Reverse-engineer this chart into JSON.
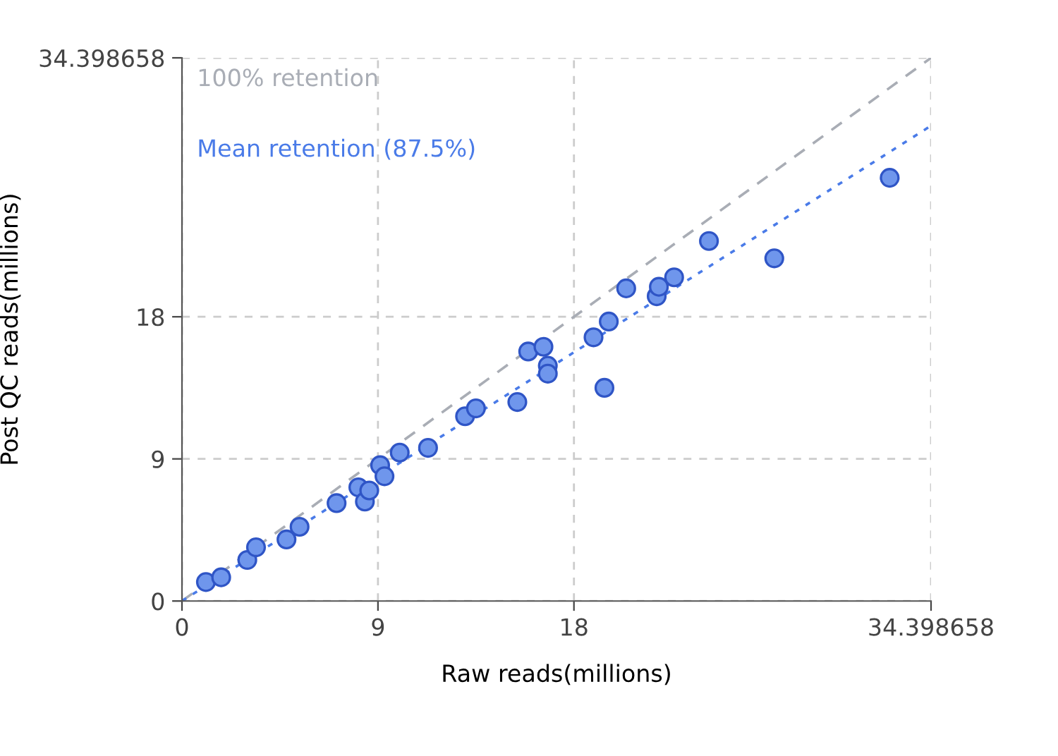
{
  "chart_data": {
    "type": "scatter",
    "xlabel": "Raw reads(millions)",
    "ylabel": "Post QC reads(millions)",
    "xlim": [
      0,
      34.398658
    ],
    "ylim": [
      0,
      34.398658
    ],
    "xticks": [
      0,
      9,
      18,
      34.398658
    ],
    "yticks": [
      0,
      9,
      18,
      34.398658
    ],
    "grid": true,
    "series": [
      {
        "type": "line",
        "name": "100% retention",
        "color": "#a9adb5",
        "line_style": "dashed",
        "marker": "none",
        "x": [
          0,
          34.398658
        ],
        "values": [
          0,
          34.398658
        ]
      },
      {
        "type": "line",
        "name": "Mean retention (87.5%)",
        "color": "#4a7be8",
        "line_style": "dotted",
        "marker": "none",
        "x": [
          0,
          34.398658
        ],
        "values": [
          0,
          30.1
        ]
      },
      {
        "color": "#6f96ec",
        "marker": "circle",
        "x": [
          1.1,
          1.8,
          3.0,
          3.4,
          4.8,
          5.4,
          7.1,
          8.1,
          8.4,
          8.6,
          9.1,
          9.3,
          10.0,
          11.3,
          13.0,
          13.5,
          15.4,
          15.9,
          16.6,
          16.8,
          16.8,
          18.9,
          19.4,
          19.6,
          20.4,
          21.8,
          21.9,
          22.6,
          24.2,
          27.2,
          32.5
        ],
        "values": [
          1.2,
          1.5,
          2.6,
          3.4,
          3.9,
          4.7,
          6.2,
          7.2,
          6.3,
          7.0,
          8.6,
          7.9,
          9.4,
          9.7,
          11.7,
          12.2,
          12.6,
          15.8,
          16.1,
          14.9,
          14.4,
          16.7,
          13.5,
          17.7,
          19.8,
          19.3,
          19.9,
          20.5,
          22.8,
          21.7,
          26.8
        ]
      }
    ]
  }
}
